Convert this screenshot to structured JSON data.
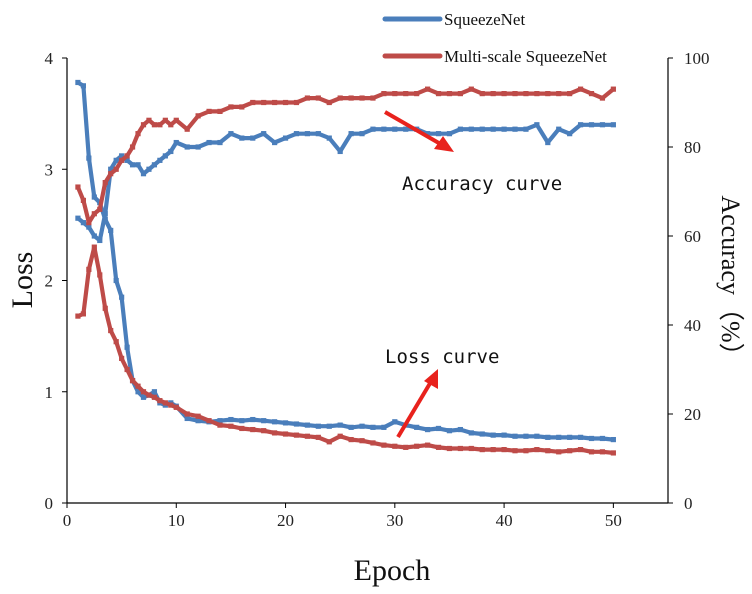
{
  "chart_data": {
    "type": "line",
    "xlabel": "Epoch",
    "ylabel": "Loss",
    "y2label": "Accuracy（%）",
    "xlim": [
      0,
      55
    ],
    "ylim": [
      0,
      4
    ],
    "y2lim": [
      0,
      100
    ],
    "xticks": [
      0,
      10,
      20,
      30,
      40,
      50
    ],
    "yticks": [
      0,
      1,
      2,
      3,
      4
    ],
    "y2ticks": [
      0,
      20,
      40,
      60,
      80,
      100
    ],
    "legend_position": "top-center",
    "colors": {
      "squeezenet": "#4a7ebb",
      "multiscale": "#be4b48",
      "arrow": "#e8221d"
    },
    "legend": [
      "SqueezeNet",
      "Multi-scale SqueezeNet"
    ],
    "annotations": {
      "accuracy": "Accuracy curve",
      "loss": "Loss curve"
    },
    "series": [
      {
        "name": "SqueezeNet",
        "kind": "loss",
        "axis": "left",
        "color": "#4a7ebb",
        "x": [
          1,
          1.5,
          2,
          2.5,
          3,
          3.5,
          4,
          4.5,
          5,
          5.5,
          6,
          6.5,
          7,
          7.5,
          8,
          8.5,
          9,
          9.5,
          10,
          11,
          12,
          13,
          14,
          15,
          16,
          17,
          18,
          19,
          20,
          21,
          22,
          23,
          24,
          25,
          26,
          27,
          28,
          29,
          30,
          31,
          32,
          33,
          34,
          35,
          36,
          37,
          38,
          39,
          40,
          41,
          42,
          43,
          44,
          45,
          46,
          47,
          48,
          49,
          50
        ],
        "y": [
          3.78,
          3.75,
          3.1,
          2.75,
          2.7,
          2.55,
          2.45,
          2.0,
          1.85,
          1.4,
          1.1,
          1.0,
          0.95,
          0.97,
          1.0,
          0.9,
          0.88,
          0.9,
          0.87,
          0.76,
          0.74,
          0.73,
          0.74,
          0.75,
          0.74,
          0.75,
          0.74,
          0.73,
          0.72,
          0.71,
          0.7,
          0.69,
          0.69,
          0.7,
          0.68,
          0.69,
          0.68,
          0.68,
          0.73,
          0.7,
          0.68,
          0.66,
          0.67,
          0.65,
          0.66,
          0.63,
          0.62,
          0.61,
          0.61,
          0.6,
          0.6,
          0.6,
          0.59,
          0.59,
          0.59,
          0.59,
          0.58,
          0.58,
          0.57
        ]
      },
      {
        "name": "Multi-scale SqueezeNet",
        "kind": "loss",
        "axis": "left",
        "color": "#be4b48",
        "x": [
          1,
          1.5,
          2,
          2.5,
          3,
          3.5,
          4,
          4.5,
          5,
          5.5,
          6,
          6.5,
          7,
          7.5,
          8,
          8.5,
          9,
          9.5,
          10,
          11,
          12,
          13,
          14,
          15,
          16,
          17,
          18,
          19,
          20,
          21,
          22,
          23,
          24,
          25,
          26,
          27,
          28,
          29,
          30,
          31,
          32,
          33,
          34,
          35,
          36,
          37,
          38,
          39,
          40,
          41,
          42,
          43,
          44,
          45,
          46,
          47,
          48,
          49,
          50
        ],
        "y": [
          1.68,
          1.7,
          2.1,
          2.3,
          2.05,
          1.75,
          1.55,
          1.45,
          1.3,
          1.2,
          1.1,
          1.05,
          1.0,
          0.97,
          0.95,
          0.92,
          0.9,
          0.88,
          0.86,
          0.8,
          0.78,
          0.74,
          0.7,
          0.69,
          0.67,
          0.66,
          0.65,
          0.63,
          0.62,
          0.61,
          0.6,
          0.59,
          0.55,
          0.6,
          0.57,
          0.56,
          0.54,
          0.52,
          0.51,
          0.5,
          0.51,
          0.52,
          0.5,
          0.49,
          0.49,
          0.49,
          0.48,
          0.48,
          0.48,
          0.47,
          0.47,
          0.48,
          0.47,
          0.46,
          0.47,
          0.48,
          0.46,
          0.46,
          0.45
        ]
      },
      {
        "name": "SqueezeNet",
        "kind": "accuracy",
        "axis": "right",
        "color": "#4a7ebb",
        "x": [
          1,
          1.5,
          2,
          2.5,
          3,
          3.5,
          4,
          4.5,
          5,
          5.5,
          6,
          6.5,
          7,
          7.5,
          8,
          8.5,
          9,
          9.5,
          10,
          11,
          12,
          13,
          14,
          15,
          16,
          17,
          18,
          19,
          20,
          21,
          22,
          23,
          24,
          25,
          26,
          27,
          28,
          29,
          30,
          31,
          32,
          33,
          34,
          35,
          36,
          37,
          38,
          39,
          40,
          41,
          42,
          43,
          44,
          45,
          46,
          47,
          48,
          49,
          50
        ],
        "y": [
          64,
          63,
          62,
          60,
          59,
          65,
          75,
          77,
          78,
          77,
          76,
          76,
          74,
          75,
          76,
          77,
          78,
          79,
          81,
          80,
          80,
          81,
          81,
          83,
          82,
          82,
          83,
          81,
          82,
          83,
          83,
          83,
          82,
          79,
          83,
          83,
          84,
          84,
          84,
          84,
          84,
          83,
          83,
          83,
          84,
          84,
          84,
          84,
          84,
          84,
          84,
          85,
          81,
          84,
          83,
          85,
          85,
          85,
          85
        ]
      },
      {
        "name": "Multi-scale SqueezeNet",
        "kind": "accuracy",
        "axis": "right",
        "color": "#be4b48",
        "x": [
          1,
          1.5,
          2,
          2.5,
          3,
          3.5,
          4,
          4.5,
          5,
          5.5,
          6,
          6.5,
          7,
          7.5,
          8,
          8.5,
          9,
          9.5,
          10,
          11,
          12,
          13,
          14,
          15,
          16,
          17,
          18,
          19,
          20,
          21,
          22,
          23,
          24,
          25,
          26,
          27,
          28,
          29,
          30,
          31,
          32,
          33,
          34,
          35,
          36,
          37,
          38,
          39,
          40,
          41,
          42,
          43,
          44,
          45,
          46,
          47,
          48,
          49,
          50
        ],
        "y": [
          71,
          68,
          63,
          65,
          66,
          72,
          74,
          75,
          77,
          78,
          80,
          83,
          85,
          86,
          85,
          85,
          86,
          85,
          86,
          84,
          87,
          88,
          88,
          89,
          89,
          90,
          90,
          90,
          90,
          90,
          91,
          91,
          90,
          91,
          91,
          91,
          91,
          92,
          92,
          92,
          92,
          93,
          92,
          92,
          92,
          93,
          92,
          92,
          92,
          92,
          92,
          92,
          92,
          92,
          92,
          93,
          92,
          91,
          93
        ]
      }
    ]
  }
}
